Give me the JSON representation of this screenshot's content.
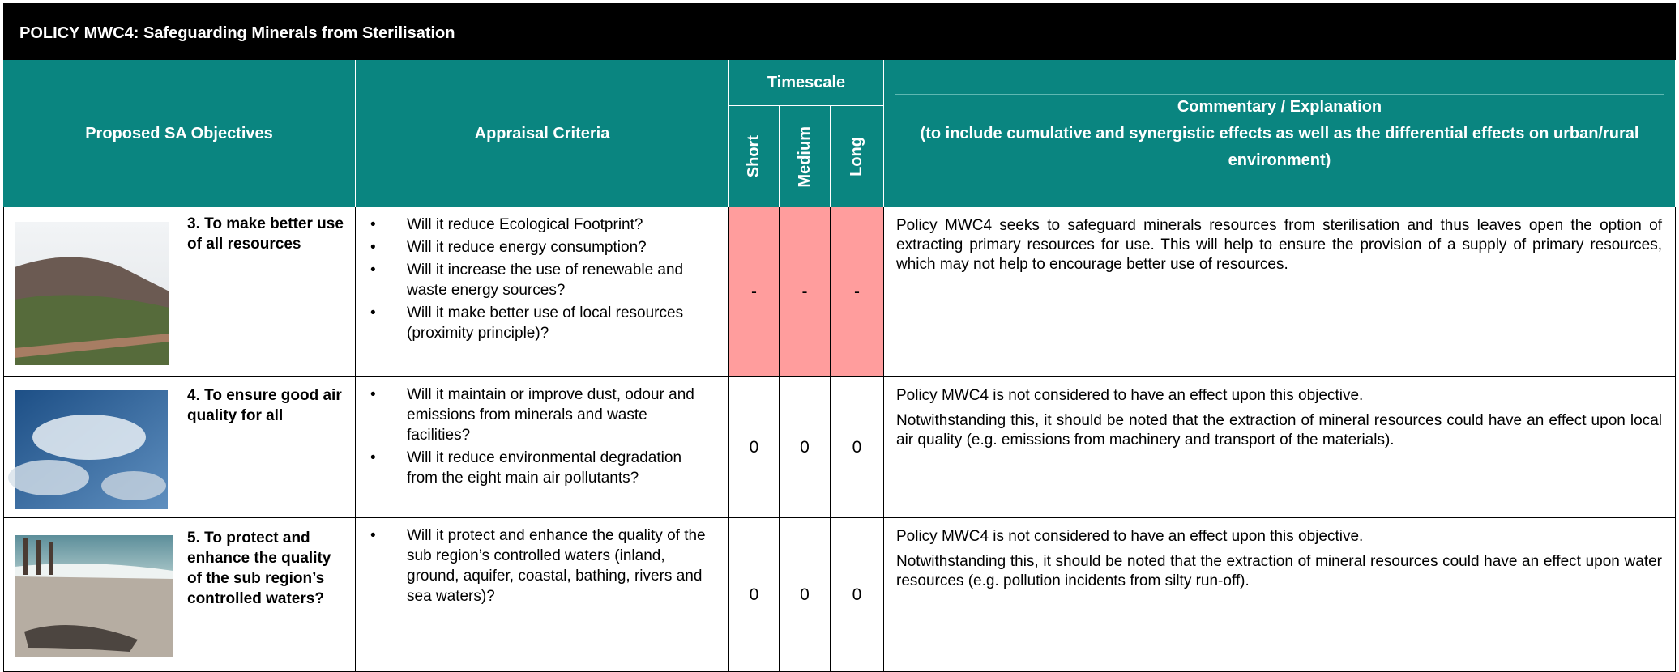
{
  "header": {
    "title": "POLICY MWC4: Safeguarding Minerals from Sterilisation"
  },
  "table": {
    "columns": {
      "objectives": "Proposed SA Objectives",
      "criteria": "Appraisal Criteria",
      "timescale": "Timescale",
      "short": "Short",
      "medium": "Medium",
      "long": "Long",
      "commentary_title": "Commentary / Explanation",
      "commentary_note": "(to include cumulative and synergistic effects as well as the differential effects on urban/rural environment)"
    },
    "rows": [
      {
        "objective": "3. To make better use of all resources",
        "criteria": [
          "Will it reduce Ecological Footprint?",
          "Will it reduce energy consumption?",
          "Will it increase the use of renewable and waste energy sources?",
          "Will it make better use of local resources (proximity principle)?"
        ],
        "short": "-",
        "medium": "-",
        "long": "-",
        "commentary": [
          "Policy MWC4 seeks to safeguard minerals resources from sterilisation and thus leaves open the option of extracting primary resources for use. This will help to ensure the provision of a supply of primary resources, which may not help to encourage better use of resources."
        ]
      },
      {
        "objective": "4. To ensure good air quality for all",
        "criteria": [
          "Will it maintain or improve dust, odour and emissions from minerals and waste facilities?",
          "Will it reduce environmental degradation from the eight main air pollutants?"
        ],
        "short": "0",
        "medium": "0",
        "long": "0",
        "commentary": [
          "Policy MWC4 is not considered to have an effect upon this objective.",
          "Notwithstanding this, it should be noted that the extraction of mineral resources could have an effect upon local air quality (e.g. emissions from machinery and transport of the materials)."
        ]
      },
      {
        "objective": "5. To protect and enhance the quality of the sub region’s controlled waters?",
        "criteria": [
          "Will it protect and enhance the quality of the sub region’s controlled waters (inland, ground, aquifer, coastal, bathing, rivers and sea waters)?"
        ],
        "short": "0",
        "medium": "0",
        "long": "0",
        "commentary": [
          "Policy MWC4 is not considered to have an effect upon this objective.",
          "Notwithstanding this, it should be noted that the extraction of mineral resources could have an effect upon water resources (e.g. pollution incidents from silty run-off)."
        ]
      }
    ]
  }
}
